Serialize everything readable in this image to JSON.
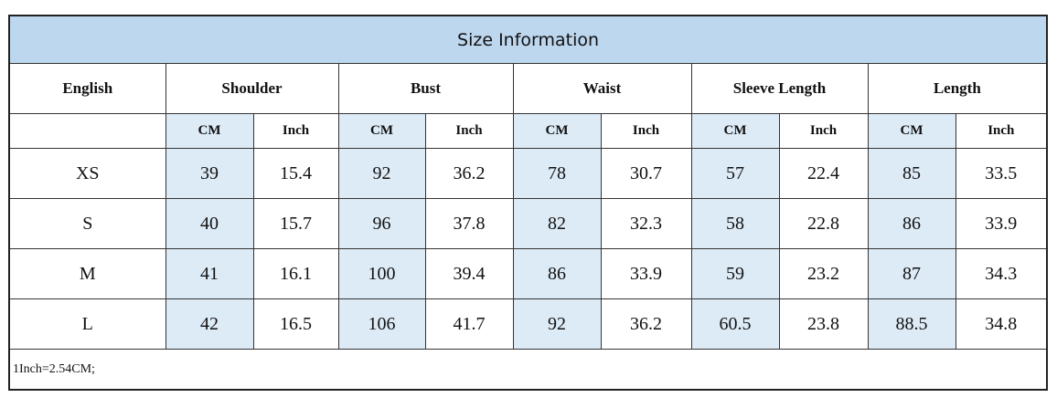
{
  "title": "Size Information",
  "headers": {
    "size": "English",
    "shoulder": "Shoulder",
    "bust": "Bust",
    "waist": "Waist",
    "sleeve": "Sleeve Length",
    "length": "Length"
  },
  "units": {
    "cm": "CM",
    "inch": "Inch"
  },
  "rows": [
    {
      "size": "XS",
      "values": [
        "39",
        "15.4",
        "92",
        "36.2",
        "78",
        "30.7",
        "57",
        "22.4",
        "85",
        "33.5"
      ]
    },
    {
      "size": "S",
      "values": [
        "40",
        "15.7",
        "96",
        "37.8",
        "82",
        "32.3",
        "58",
        "22.8",
        "86",
        "33.9"
      ]
    },
    {
      "size": "M",
      "values": [
        "41",
        "16.1",
        "100",
        "39.4",
        "86",
        "33.9",
        "59",
        "23.2",
        "87",
        "34.3"
      ]
    },
    {
      "size": "L",
      "values": [
        "42",
        "16.5",
        "106",
        "41.7",
        "92",
        "36.2",
        "60.5",
        "23.8",
        "88.5",
        "34.8"
      ]
    }
  ],
  "note": "1Inch=2.54CM;"
}
